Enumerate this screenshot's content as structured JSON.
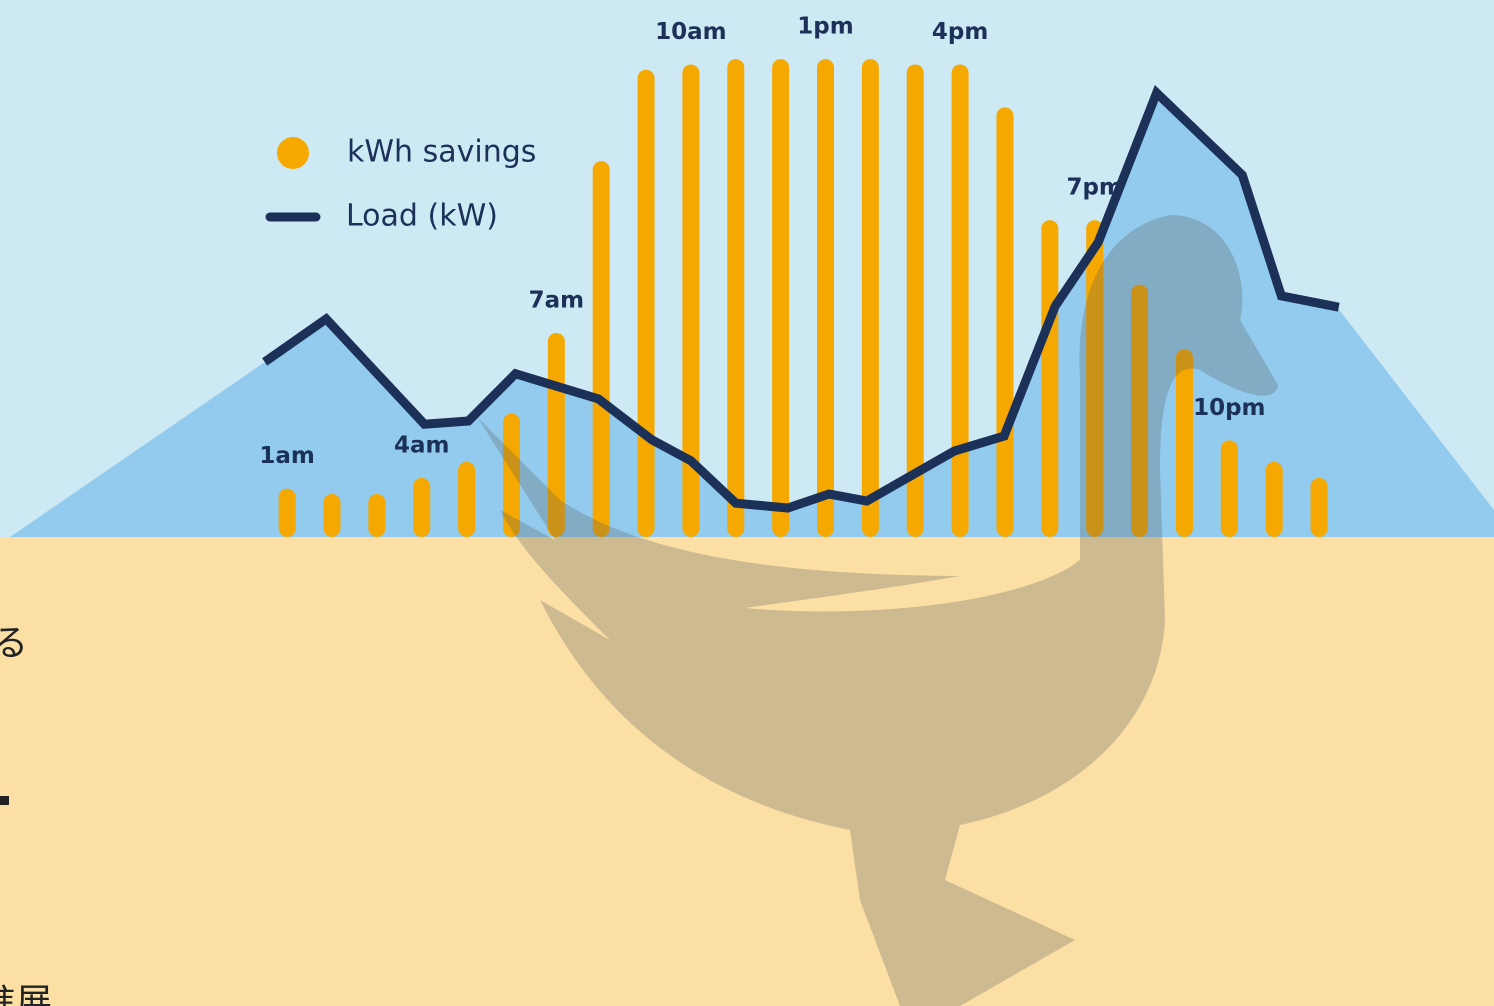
{
  "chart_data": {
    "type": "bar",
    "categories": [
      "1am",
      null,
      null,
      "4am",
      null,
      null,
      "7am",
      null,
      null,
      "10am",
      null,
      null,
      "1pm",
      null,
      null,
      "4pm",
      null,
      null,
      "7pm",
      null,
      null,
      "10pm",
      null,
      null
    ],
    "xlim": [
      -5.4,
      27.9
    ],
    "ylim": [
      0,
      100
    ],
    "legend": "upper left",
    "series": [
      {
        "name": "kWh savings",
        "type": "bar",
        "color": "#f5a800",
        "values": [
          9,
          8,
          8,
          11,
          14,
          23,
          38,
          70,
          87,
          88,
          89,
          89,
          89,
          89,
          88,
          88,
          80,
          59,
          59,
          47,
          35,
          18,
          14,
          11
        ]
      },
      {
        "name": "Load (kW)",
        "type": "line",
        "color": "#1b3158",
        "x": [
          0.5,
          1.87,
          4.06,
          5.04,
          6.09,
          7.94,
          9.13,
          10.0,
          11.0,
          12.16,
          13.08,
          13.92,
          15.87,
          16.98,
          18.12,
          19.08,
          20.38,
          22.29,
          23.16,
          24.44
        ],
        "values": [
          32.6,
          40.6,
          21.0,
          21.6,
          30.4,
          25.7,
          18.1,
          14.2,
          6.3,
          5.4,
          8.0,
          6.7,
          16.0,
          18.8,
          43.0,
          54.9,
          82.7,
          67.4,
          44.9,
          42.8
        ]
      }
    ]
  },
  "side_text": [
    "る",
    "進展"
  ]
}
